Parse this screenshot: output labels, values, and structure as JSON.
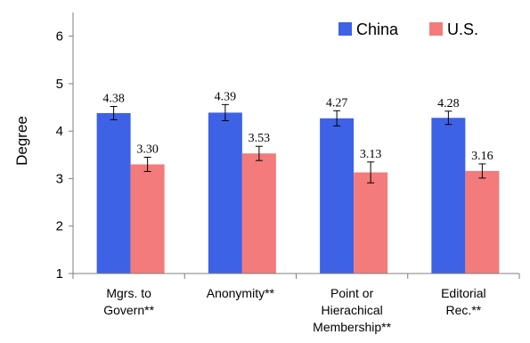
{
  "chart_data": {
    "type": "bar",
    "ylabel": "Degree",
    "xlabel": "",
    "ylim": [
      1,
      6.5
    ],
    "yticks": [
      1,
      2,
      3,
      4,
      5,
      6
    ],
    "grid": false,
    "legend_position": "top-right",
    "categories": [
      [
        "Mgrs. to",
        "Govern**"
      ],
      [
        "Anonymity**"
      ],
      [
        "Point or",
        "Hierachical",
        "Membership**"
      ],
      [
        "Editorial",
        "Rec.**"
      ]
    ],
    "series": [
      {
        "name": "China",
        "color": "#3D62E6",
        "values": [
          4.38,
          4.39,
          4.27,
          4.28
        ],
        "labels": [
          "4.38",
          "4.39",
          "4.27",
          "4.28"
        ],
        "error": [
          0.14,
          0.17,
          0.16,
          0.14
        ]
      },
      {
        "name": "U.S.",
        "color": "#F47B7B",
        "values": [
          3.3,
          3.53,
          3.13,
          3.16
        ],
        "labels": [
          "3.30",
          "3.53",
          "3.13",
          "3.16"
        ],
        "error": [
          0.15,
          0.15,
          0.22,
          0.15
        ]
      }
    ]
  }
}
